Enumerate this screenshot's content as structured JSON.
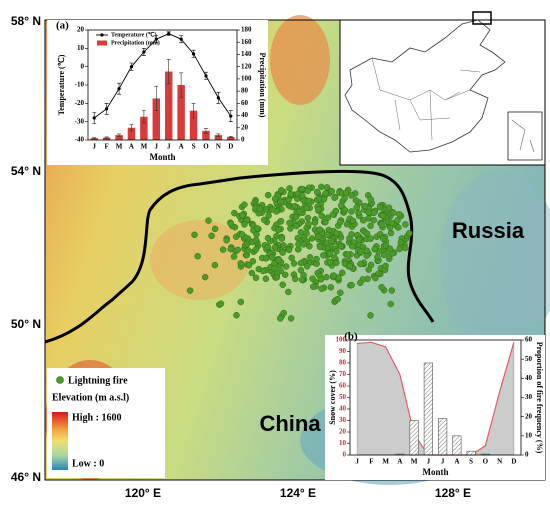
{
  "map": {
    "lat_labels": [
      "58° N",
      "54° N",
      "50° N",
      "46° N"
    ],
    "lon_labels": [
      "120° E",
      "124° E",
      "128° E"
    ],
    "russia": "Russia",
    "china": "China"
  },
  "legend": {
    "fire": "Lightning fire",
    "elevation": "Elevation (m a.s.l)",
    "high": "High : 1600",
    "low": "Low : 0"
  },
  "chart_data": [
    {
      "type": "combo",
      "panel": "(a)",
      "categories": [
        "J",
        "F",
        "M",
        "A",
        "M",
        "J",
        "J",
        "A",
        "S",
        "O",
        "N",
        "D"
      ],
      "xlabel": "Month",
      "ylabel": "Temperature (℃)",
      "y2label": "Precipitation (mm)",
      "ylim": [
        -40,
        20
      ],
      "yticks": [
        -40,
        -30,
        -20,
        -10,
        0,
        10,
        20
      ],
      "y2lim": [
        0,
        180
      ],
      "y2ticks": [
        0,
        20,
        40,
        60,
        80,
        100,
        120,
        140,
        160,
        180
      ],
      "legend": "upper left",
      "series": [
        {
          "name": "Temperature (℃)",
          "mark": "line",
          "color": "#000000",
          "values": [
            -28,
            -23,
            -12,
            0,
            8,
            15,
            18,
            15,
            7,
            -5,
            -17,
            -27
          ],
          "errors": [
            3,
            3,
            3,
            2,
            2,
            2,
            1,
            2,
            2,
            2,
            3,
            3
          ]
        },
        {
          "name": "Precipitation (mm)",
          "mark": "bar",
          "color": "#d93a3a",
          "axis": "y2",
          "values": [
            3,
            4,
            8,
            20,
            38,
            68,
            112,
            90,
            48,
            15,
            8,
            5
          ],
          "errors": [
            1,
            1,
            2,
            5,
            10,
            20,
            20,
            20,
            12,
            4,
            2,
            1
          ]
        }
      ]
    },
    {
      "type": "combo",
      "panel": "(b)",
      "categories": [
        "J",
        "F",
        "M",
        "A",
        "M",
        "J",
        "J",
        "A",
        "S",
        "O",
        "N",
        "D"
      ],
      "xlabel": "Month",
      "ylabel": "Snow cover (%)",
      "y2label": "Proportion of fire frequency (%)",
      "ylim": [
        0,
        100
      ],
      "yticks": [
        0,
        10,
        20,
        30,
        40,
        50,
        60,
        70,
        80,
        90,
        100
      ],
      "y2lim": [
        0,
        60
      ],
      "y2ticks": [
        0,
        10,
        20,
        30,
        40,
        50,
        60
      ],
      "series": [
        {
          "mark": "area",
          "color": "#e06060",
          "fill": "#cccccc",
          "values": [
            97,
            98,
            94,
            70,
            18,
            0,
            0,
            0,
            0,
            8,
            55,
            98
          ]
        },
        {
          "mark": "hatch",
          "color": "#555555",
          "axis": "y2",
          "values": [
            0,
            0,
            0,
            0.5,
            18,
            48,
            19,
            10,
            2,
            0.5,
            0,
            0
          ]
        }
      ]
    }
  ]
}
